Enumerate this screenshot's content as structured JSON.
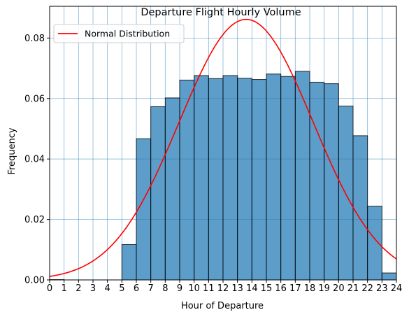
{
  "chart_data": {
    "type": "bar",
    "title": "Departure Flight Hourly Volume",
    "xlabel": "Hour of Departure",
    "ylabel": "Frequency",
    "xlim": [
      0,
      24
    ],
    "ylim": [
      0,
      0.0905
    ],
    "x_ticks": [
      "0",
      "1",
      "2",
      "3",
      "4",
      "5",
      "6",
      "7",
      "8",
      "9",
      "10",
      "11",
      "12",
      "13",
      "14",
      "15",
      "16",
      "17",
      "18",
      "19",
      "20",
      "21",
      "22",
      "23",
      "24"
    ],
    "y_ticks": [
      "0.00",
      "0.02",
      "0.04",
      "0.06",
      "0.08"
    ],
    "y_tick_values": [
      0,
      0.02,
      0.04,
      0.06,
      0.08
    ],
    "grid": true,
    "legend_position": "top-left",
    "bar_color": "#1f77b4",
    "bar_edge_color": "#000000",
    "bins": [
      0,
      1,
      2,
      3,
      4,
      5,
      6,
      7,
      8,
      9,
      10,
      11,
      12,
      13,
      14,
      15,
      16,
      17,
      18,
      19,
      20,
      21,
      22,
      23
    ],
    "values": [
      0.0001,
      0,
      0,
      0,
      0,
      0.0117,
      0.0467,
      0.0573,
      0.0602,
      0.0661,
      0.0676,
      0.0666,
      0.0676,
      0.0667,
      0.0663,
      0.0681,
      0.0673,
      0.069,
      0.0654,
      0.0649,
      0.0575,
      0.0477,
      0.0244,
      0.0023
    ],
    "series": [
      {
        "name": "Normal Distribution",
        "type": "line",
        "color": "#ff0000",
        "mean": 13.6,
        "std": 4.63
      }
    ]
  }
}
